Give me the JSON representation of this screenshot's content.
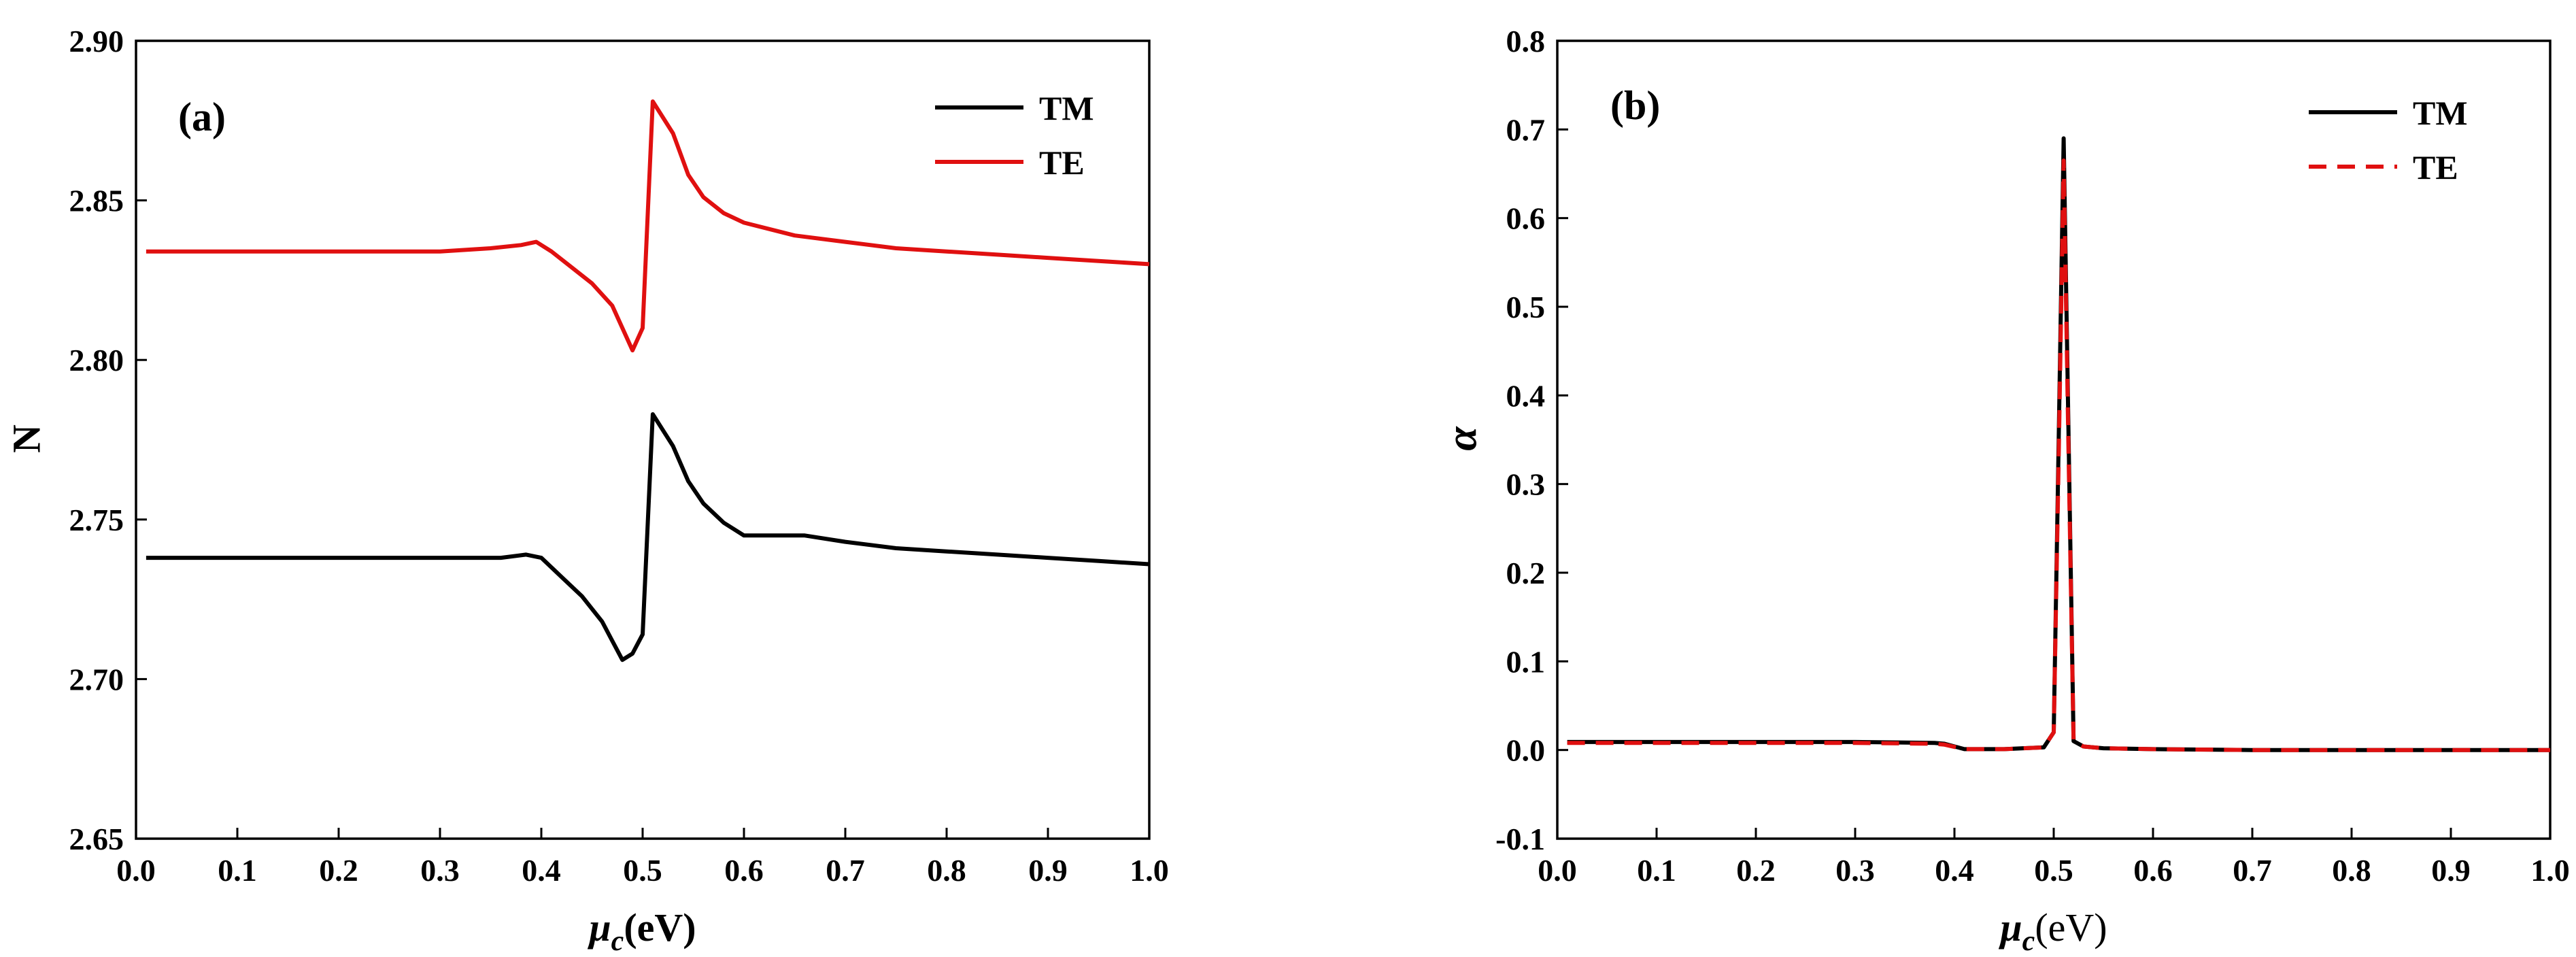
{
  "chart_data": [
    {
      "type": "line",
      "panel_label": "(a)",
      "title": "",
      "xlabel": "μ",
      "xlabel_sub": "c",
      "xlabel_unit": "(eV)",
      "ylabel": "N",
      "xlim": [
        0.0,
        1.0
      ],
      "ylim": [
        2.65,
        2.9
      ],
      "xticks": [
        "0.0",
        "0.1",
        "0.2",
        "0.3",
        "0.4",
        "0.5",
        "0.6",
        "0.7",
        "0.8",
        "0.9",
        "1.0"
      ],
      "yticks": [
        "2.65",
        "2.70",
        "2.75",
        "2.80",
        "2.85",
        "2.90"
      ],
      "legend_position": "top-right",
      "series": [
        {
          "name": "TM",
          "color": "#000000",
          "dash": "solid",
          "x": [
            0.01,
            0.1,
            0.2,
            0.3,
            0.36,
            0.385,
            0.4,
            0.42,
            0.44,
            0.46,
            0.47,
            0.48,
            0.49,
            0.5,
            0.51,
            0.53,
            0.545,
            0.56,
            0.58,
            0.6,
            0.62,
            0.66,
            0.7,
            0.75,
            0.8,
            0.85,
            0.9,
            0.95,
            1.0
          ],
          "y": [
            2.738,
            2.738,
            2.738,
            2.738,
            2.738,
            2.739,
            2.738,
            2.732,
            2.726,
            2.718,
            2.712,
            2.706,
            2.708,
            2.714,
            2.783,
            2.773,
            2.762,
            2.755,
            2.749,
            2.745,
            2.745,
            2.745,
            2.743,
            2.741,
            2.74,
            2.739,
            2.738,
            2.737,
            2.736
          ]
        },
        {
          "name": "TE",
          "color": "#e01010",
          "dash": "solid",
          "x": [
            0.01,
            0.1,
            0.2,
            0.3,
            0.35,
            0.38,
            0.395,
            0.41,
            0.43,
            0.45,
            0.47,
            0.48,
            0.49,
            0.5,
            0.51,
            0.53,
            0.545,
            0.56,
            0.58,
            0.6,
            0.65,
            0.7,
            0.75,
            0.8,
            0.85,
            0.9,
            0.95,
            1.0
          ],
          "y": [
            2.834,
            2.834,
            2.834,
            2.834,
            2.835,
            2.836,
            2.837,
            2.834,
            2.829,
            2.824,
            2.817,
            2.81,
            2.803,
            2.81,
            2.881,
            2.871,
            2.858,
            2.851,
            2.846,
            2.843,
            2.839,
            2.837,
            2.835,
            2.834,
            2.833,
            2.832,
            2.831,
            2.83
          ]
        }
      ]
    },
    {
      "type": "line",
      "panel_label": "(b)",
      "title": "",
      "xlabel": "μ",
      "xlabel_sub": "c",
      "xlabel_unit": "(eV)",
      "ylabel": "α",
      "xlim": [
        0.0,
        1.0
      ],
      "ylim": [
        -0.1,
        0.8
      ],
      "xticks": [
        "0.0",
        "0.1",
        "0.2",
        "0.3",
        "0.4",
        "0.5",
        "0.6",
        "0.7",
        "0.8",
        "0.9",
        "1.0"
      ],
      "yticks": [
        "-0.1",
        "0.0",
        "0.1",
        "0.2",
        "0.3",
        "0.4",
        "0.5",
        "0.6",
        "0.7",
        "0.8"
      ],
      "legend_position": "top-right",
      "series": [
        {
          "name": "TM",
          "color": "#000000",
          "dash": "solid",
          "x": [
            0.01,
            0.1,
            0.2,
            0.3,
            0.38,
            0.39,
            0.41,
            0.45,
            0.49,
            0.5,
            0.505,
            0.51,
            0.515,
            0.52,
            0.53,
            0.55,
            0.6,
            0.7,
            0.8,
            0.9,
            1.0
          ],
          "y": [
            0.009,
            0.009,
            0.009,
            0.009,
            0.008,
            0.007,
            0.001,
            0.001,
            0.003,
            0.02,
            0.35,
            0.69,
            0.35,
            0.01,
            0.004,
            0.002,
            0.001,
            0.0,
            0.0,
            0.0,
            0.0
          ]
        },
        {
          "name": "TE",
          "color": "#e01010",
          "dash": "dashed",
          "x": [
            0.01,
            0.1,
            0.2,
            0.3,
            0.38,
            0.39,
            0.41,
            0.45,
            0.49,
            0.5,
            0.505,
            0.51,
            0.515,
            0.52,
            0.53,
            0.55,
            0.6,
            0.7,
            0.8,
            0.9,
            1.0
          ],
          "y": [
            0.008,
            0.008,
            0.008,
            0.008,
            0.007,
            0.006,
            0.001,
            0.001,
            0.003,
            0.02,
            0.33,
            0.665,
            0.33,
            0.01,
            0.004,
            0.002,
            0.001,
            0.0,
            0.0,
            0.0,
            0.0
          ]
        }
      ]
    }
  ]
}
